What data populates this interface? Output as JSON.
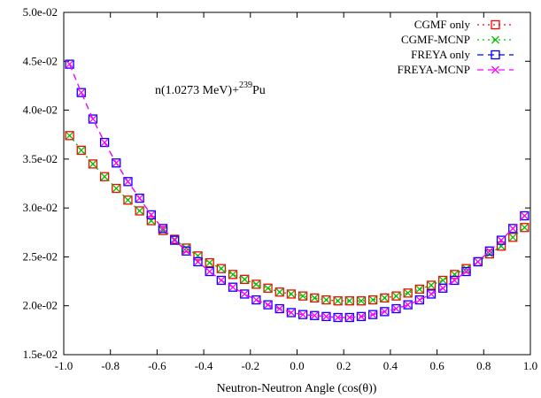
{
  "chart_data": {
    "type": "line",
    "title": "",
    "xlabel": "Neutron-Neutron Angle (cos(θ))",
    "ylabel": "",
    "xlim": [
      -1.0,
      1.0
    ],
    "ylim": [
      0.015,
      0.05
    ],
    "x_ticks": [
      "-1.0",
      "-0.8",
      "-0.6",
      "-0.4",
      "-0.2",
      "0.0",
      "0.2",
      "0.4",
      "0.6",
      "0.8",
      "1.0"
    ],
    "y_ticks": [
      "1.5e-02",
      "2.0e-02",
      "2.5e-02",
      "3.0e-02",
      "3.5e-02",
      "4.0e-02",
      "4.5e-02",
      "5.0e-02"
    ],
    "grid": false,
    "legend_position": "top-right",
    "annotation": {
      "text": "n(1.0273 MeV)+",
      "superscript": "239",
      "suffix": "Pu"
    },
    "x": [
      -0.975,
      -0.925,
      -0.875,
      -0.825,
      -0.775,
      -0.725,
      -0.675,
      -0.625,
      -0.575,
      -0.525,
      -0.475,
      -0.425,
      -0.375,
      -0.325,
      -0.275,
      -0.225,
      -0.175,
      -0.125,
      -0.075,
      -0.025,
      0.025,
      0.075,
      0.125,
      0.175,
      0.225,
      0.275,
      0.325,
      0.375,
      0.425,
      0.475,
      0.525,
      0.575,
      0.625,
      0.675,
      0.725,
      0.775,
      0.825,
      0.875,
      0.925,
      0.975
    ],
    "series": [
      {
        "name": "CGMF only",
        "color": "#ff0000",
        "marker": "square",
        "line": "dotted",
        "values": [
          0.0374,
          0.0359,
          0.0345,
          0.0332,
          0.032,
          0.0308,
          0.0297,
          0.0287,
          0.0277,
          0.0268,
          0.0259,
          0.0251,
          0.0244,
          0.0238,
          0.0232,
          0.0227,
          0.0222,
          0.0218,
          0.0214,
          0.0212,
          0.021,
          0.0208,
          0.0206,
          0.0205,
          0.0205,
          0.0205,
          0.0206,
          0.0208,
          0.021,
          0.0213,
          0.0217,
          0.0221,
          0.0226,
          0.0232,
          0.0238,
          0.0245,
          0.0253,
          0.0261,
          0.027,
          0.028
        ]
      },
      {
        "name": "CGMF-MCNP",
        "color": "#00c000",
        "marker": "x",
        "line": "dotted",
        "values": [
          0.0374,
          0.0359,
          0.0345,
          0.0332,
          0.032,
          0.0308,
          0.0297,
          0.0287,
          0.0277,
          0.0268,
          0.0259,
          0.0251,
          0.0244,
          0.0238,
          0.0232,
          0.0227,
          0.0222,
          0.0218,
          0.0214,
          0.0212,
          0.021,
          0.0208,
          0.0206,
          0.0205,
          0.0205,
          0.0205,
          0.0206,
          0.0208,
          0.021,
          0.0213,
          0.0217,
          0.0221,
          0.0226,
          0.0232,
          0.0238,
          0.0245,
          0.0253,
          0.0261,
          0.027,
          0.028
        ]
      },
      {
        "name": "FREYA only",
        "color": "#0000ff",
        "marker": "square",
        "line": "dashed",
        "values": [
          0.0447,
          0.0418,
          0.0391,
          0.0367,
          0.0346,
          0.0327,
          0.031,
          0.0293,
          0.0279,
          0.0267,
          0.0256,
          0.0245,
          0.0235,
          0.0226,
          0.0219,
          0.0212,
          0.0206,
          0.0201,
          0.0197,
          0.0193,
          0.0191,
          0.019,
          0.0189,
          0.0188,
          0.0188,
          0.0189,
          0.0191,
          0.0194,
          0.0197,
          0.0201,
          0.0206,
          0.0212,
          0.0218,
          0.0226,
          0.0235,
          0.0245,
          0.0256,
          0.0267,
          0.0279,
          0.0292
        ]
      },
      {
        "name": "FREYA-MCNP",
        "color": "#ff00ff",
        "marker": "x",
        "line": "dashed",
        "values": [
          0.0447,
          0.0418,
          0.0391,
          0.0367,
          0.0346,
          0.0327,
          0.031,
          0.0293,
          0.0279,
          0.0267,
          0.0256,
          0.0245,
          0.0235,
          0.0226,
          0.0219,
          0.0212,
          0.0206,
          0.0201,
          0.0197,
          0.0193,
          0.0191,
          0.019,
          0.0189,
          0.0188,
          0.0188,
          0.0189,
          0.0191,
          0.0194,
          0.0197,
          0.0201,
          0.0206,
          0.0212,
          0.0218,
          0.0226,
          0.0235,
          0.0245,
          0.0256,
          0.0267,
          0.0279,
          0.0292
        ]
      }
    ]
  }
}
